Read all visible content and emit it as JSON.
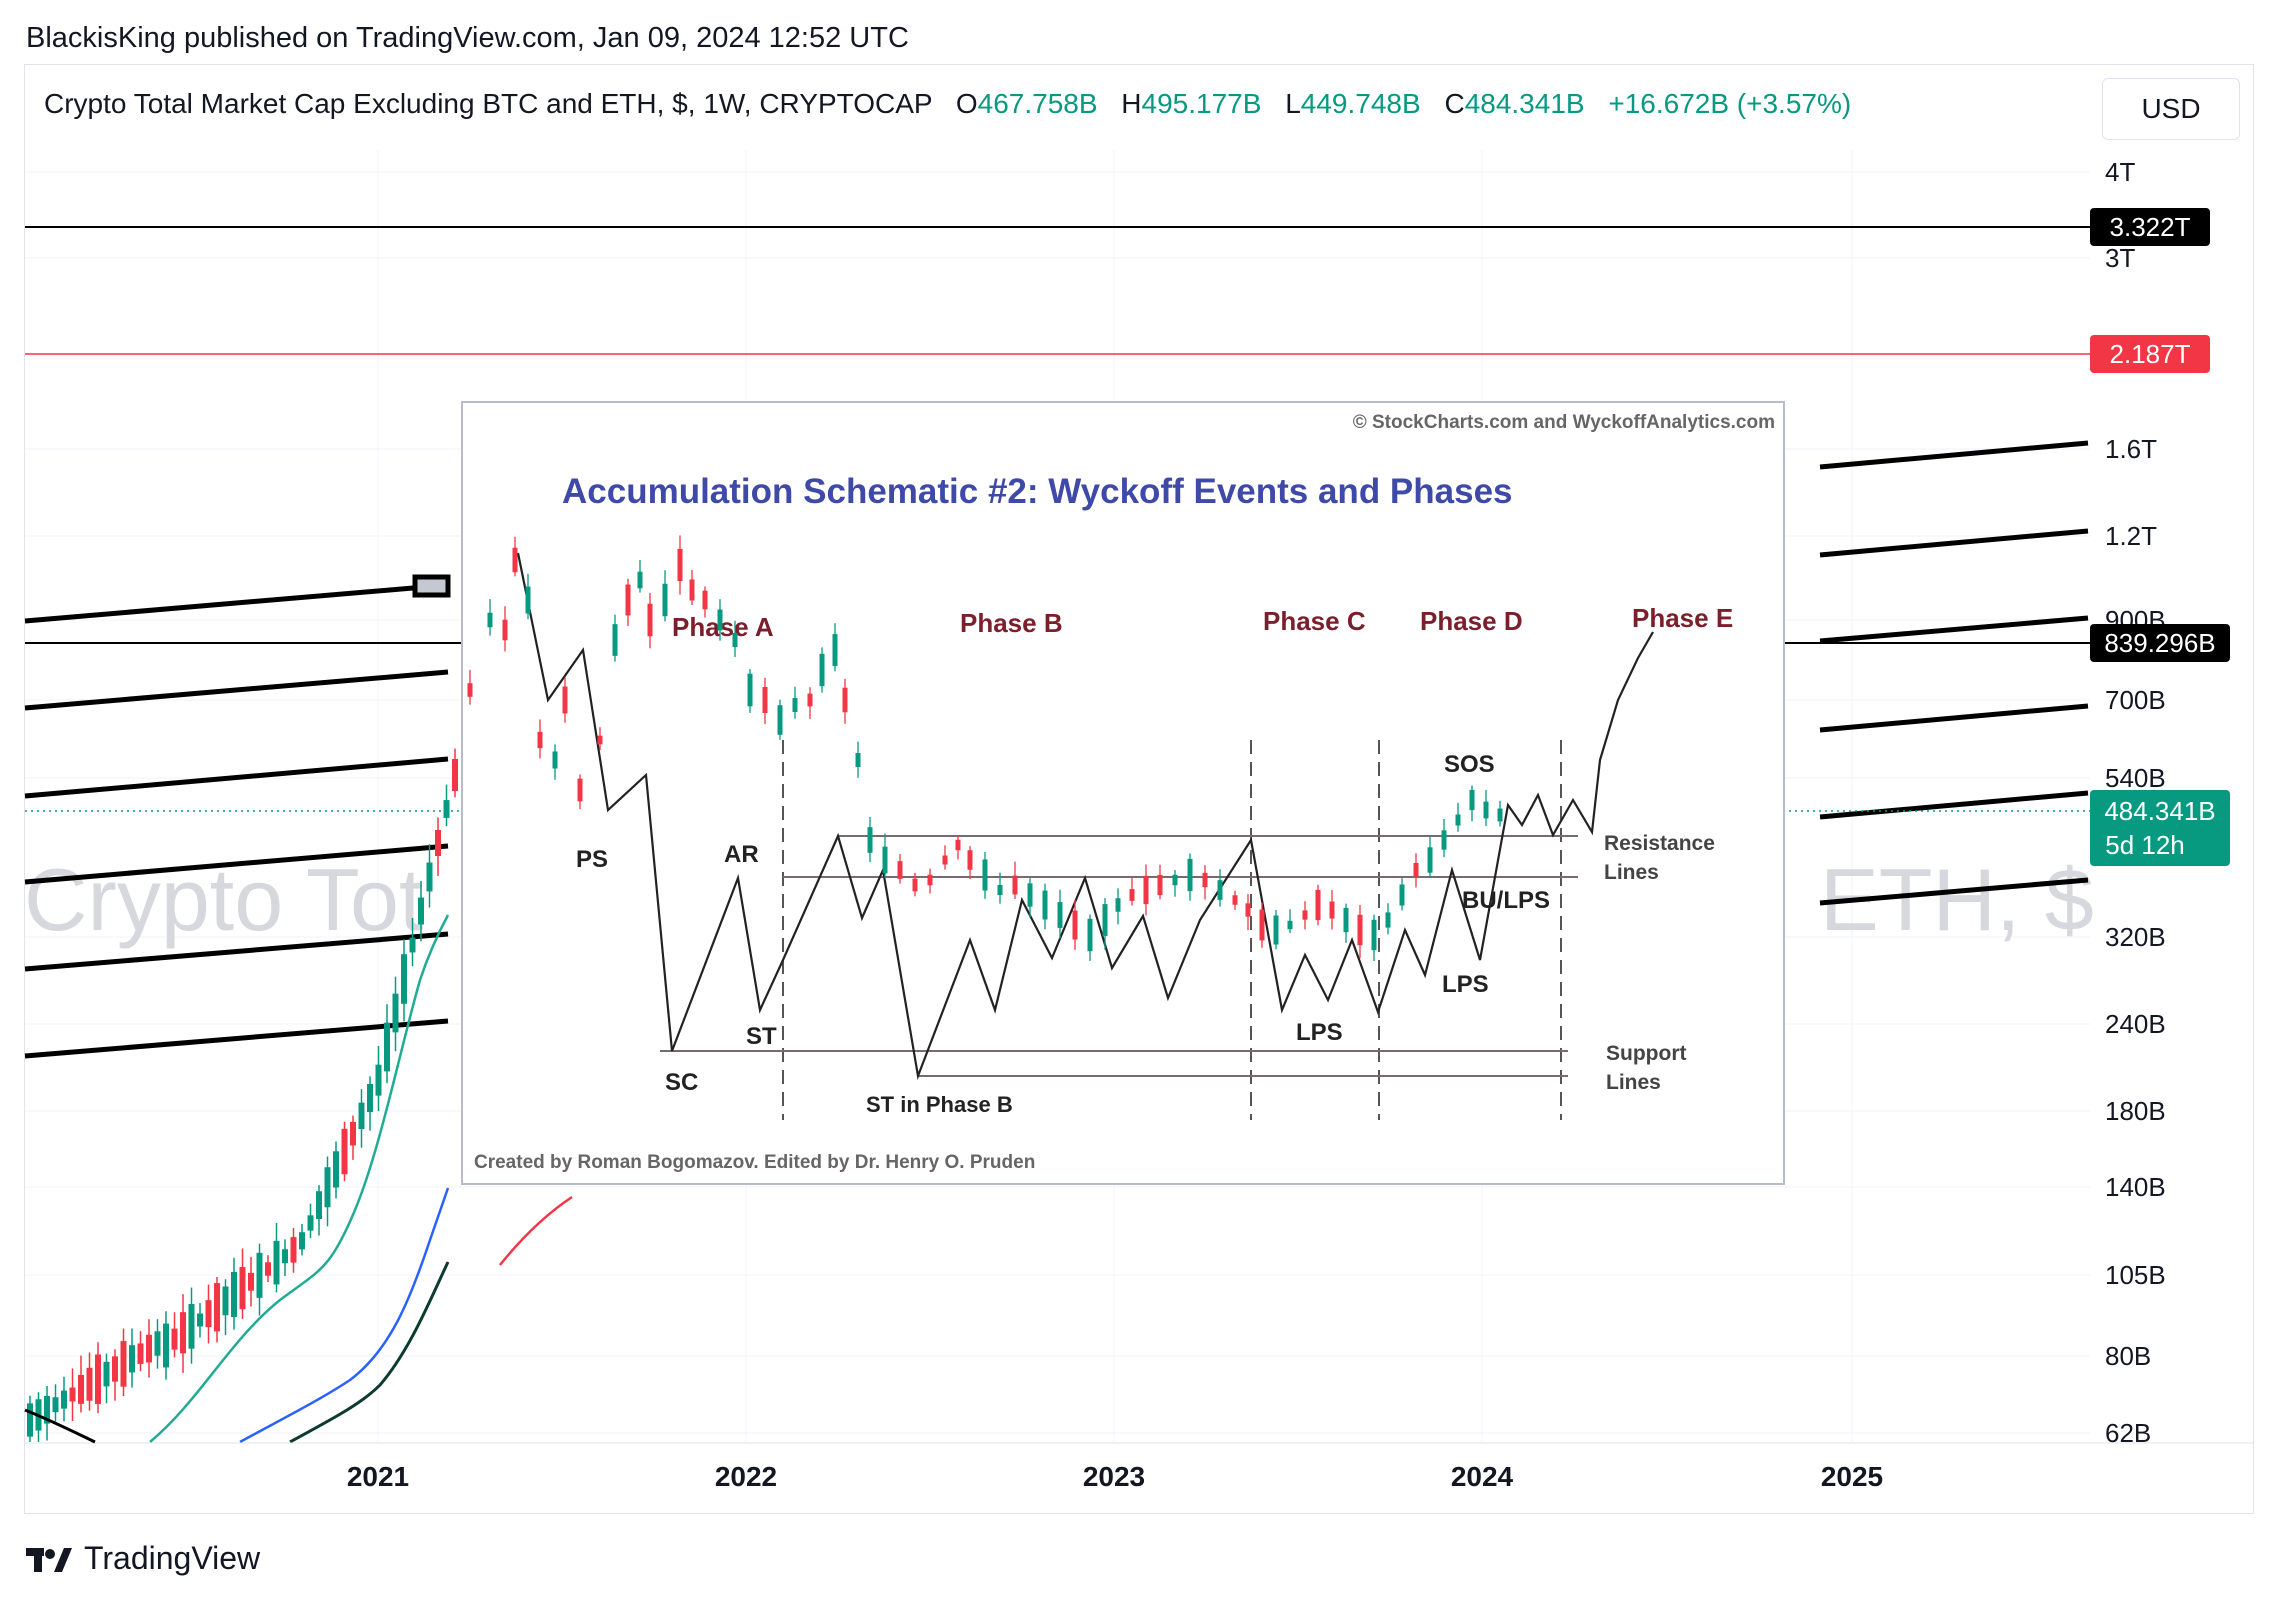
{
  "header": {
    "published_line": "BlackisKing published on TradingView.com, Jan 09, 2024 12:52 UTC"
  },
  "legend": {
    "symbol": "Crypto Total Market Cap Excluding BTC and ETH, $, 1W, CRYPTOCAP",
    "open_label": "O",
    "open": "467.758B",
    "high_label": "H",
    "high": "495.177B",
    "low_label": "L",
    "low": "449.748B",
    "close_label": "C",
    "close": "484.341B",
    "change": "+16.672B (+3.57%)",
    "up_color": "#089981"
  },
  "currency_button": "USD",
  "watermark": {
    "left": "Crypto Tot",
    "right": "ETH, $"
  },
  "chart_data": {
    "type": "candlestick",
    "y_scale": "log",
    "y_axis_labels": [
      "4T",
      "3T",
      "1.6T",
      "1.2T",
      "900B",
      "700B",
      "540B",
      "320B",
      "240B",
      "180B",
      "140B",
      "105B",
      "80B",
      "62B"
    ],
    "x_axis_labels": [
      "2021",
      "2022",
      "2023",
      "2024",
      "2025"
    ],
    "horizontal_levels": [
      {
        "value": "3.322T",
        "color": "#000000"
      },
      {
        "value": "2.187T",
        "color": "#f23645"
      },
      {
        "value": "839.296B",
        "color": "#000000"
      }
    ],
    "last_price": {
      "value": "484.341B",
      "countdown": "5d 12h",
      "color": "#089981"
    },
    "inset": {
      "copyright": "© StockCharts.com and WyckoffAnalytics.com",
      "title": "Accumulation Schematic #2: Wyckoff Events and Phases",
      "phases": [
        "Phase A",
        "Phase B",
        "Phase C",
        "Phase D",
        "Phase E"
      ],
      "events": [
        "PS",
        "AR",
        "ST",
        "SC",
        "ST in Phase B",
        "LPS",
        "SOS",
        "BU/LPS",
        "LPS"
      ],
      "resistance_label": [
        "Resistance",
        "Lines"
      ],
      "support_label": [
        "Support",
        "Lines"
      ],
      "credit": "Created by Roman Bogomazov. Edited by Dr. Henry O. Pruden"
    }
  },
  "footer": {
    "brand": "TradingView"
  }
}
